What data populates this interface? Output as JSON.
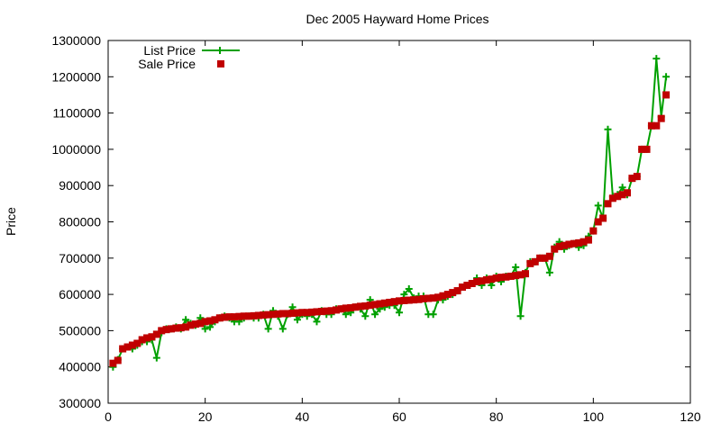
{
  "chart_data": {
    "type": "line",
    "title": "Dec 2005 Hayward Home Prices",
    "xlabel": "",
    "ylabel": "Price",
    "xlim": [
      0,
      120
    ],
    "ylim": [
      300000,
      1300000
    ],
    "x_ticks": [
      0,
      20,
      40,
      60,
      80,
      100,
      120
    ],
    "y_ticks": [
      300000,
      400000,
      500000,
      600000,
      700000,
      800000,
      900000,
      1000000,
      1100000,
      1200000,
      1300000
    ],
    "grid": false,
    "legend_position": "top-left",
    "series": [
      {
        "name": "List Price",
        "style": "line+cross",
        "color": "#00a000",
        "x": [
          1,
          2,
          3,
          4,
          5,
          6,
          7,
          8,
          9,
          10,
          11,
          12,
          13,
          14,
          15,
          16,
          17,
          18,
          19,
          20,
          21,
          22,
          23,
          24,
          25,
          26,
          27,
          28,
          29,
          30,
          31,
          32,
          33,
          34,
          35,
          36,
          37,
          38,
          39,
          40,
          41,
          42,
          43,
          44,
          45,
          46,
          47,
          48,
          49,
          50,
          51,
          52,
          53,
          54,
          55,
          56,
          57,
          58,
          59,
          60,
          61,
          62,
          63,
          64,
          65,
          66,
          67,
          68,
          69,
          70,
          71,
          72,
          73,
          74,
          75,
          76,
          77,
          78,
          79,
          80,
          81,
          82,
          83,
          84,
          85,
          86,
          87,
          88,
          89,
          90,
          91,
          92,
          93,
          94,
          95,
          96,
          97,
          98,
          99,
          100,
          101,
          102,
          103,
          104,
          105,
          106,
          107,
          108,
          109,
          110,
          111,
          112,
          113,
          114,
          115
        ],
        "y": [
          400000,
          420000,
          450000,
          455000,
          450000,
          460000,
          470000,
          470000,
          475000,
          425000,
          495000,
          505000,
          505000,
          510000,
          505000,
          530000,
          520000,
          515000,
          535000,
          505000,
          510000,
          525000,
          535000,
          540000,
          535000,
          525000,
          525000,
          535000,
          540000,
          535000,
          535000,
          545000,
          505000,
          555000,
          540000,
          505000,
          545000,
          565000,
          530000,
          545000,
          540000,
          545000,
          525000,
          555000,
          545000,
          545000,
          560000,
          560000,
          545000,
          550000,
          565000,
          560000,
          540000,
          585000,
          545000,
          560000,
          565000,
          570000,
          570000,
          550000,
          600000,
          615000,
          590000,
          595000,
          595000,
          545000,
          545000,
          585000,
          585000,
          595000,
          600000,
          610000,
          620000,
          625000,
          630000,
          645000,
          625000,
          645000,
          625000,
          650000,
          635000,
          650000,
          650000,
          675000,
          540000,
          660000,
          690000,
          690000,
          700000,
          700000,
          660000,
          730000,
          745000,
          725000,
          735000,
          740000,
          730000,
          735000,
          760000,
          775000,
          845000,
          810000,
          1055000,
          870000,
          875000,
          895000,
          875000,
          920000,
          925000,
          1000000,
          1000000,
          1065000,
          1250000,
          1090000,
          1200000
        ]
      },
      {
        "name": "Sale Price",
        "style": "square",
        "color": "#c00000",
        "x": [
          1,
          2,
          3,
          4,
          5,
          6,
          7,
          8,
          9,
          10,
          11,
          12,
          13,
          14,
          15,
          16,
          17,
          18,
          19,
          20,
          21,
          22,
          23,
          24,
          25,
          26,
          27,
          28,
          29,
          30,
          31,
          32,
          33,
          34,
          35,
          36,
          37,
          38,
          39,
          40,
          41,
          42,
          43,
          44,
          45,
          46,
          47,
          48,
          49,
          50,
          51,
          52,
          53,
          54,
          55,
          56,
          57,
          58,
          59,
          60,
          61,
          62,
          63,
          64,
          65,
          66,
          67,
          68,
          69,
          70,
          71,
          72,
          73,
          74,
          75,
          76,
          77,
          78,
          79,
          80,
          81,
          82,
          83,
          84,
          85,
          86,
          87,
          88,
          89,
          90,
          91,
          92,
          93,
          94,
          95,
          96,
          97,
          98,
          99,
          100,
          101,
          102,
          103,
          104,
          105,
          106,
          107,
          108,
          109,
          110,
          111,
          112,
          113,
          114,
          115
        ],
        "y": [
          410000,
          418000,
          450000,
          455000,
          460000,
          465000,
          475000,
          480000,
          483000,
          490000,
          500000,
          503000,
          505000,
          507000,
          508000,
          510000,
          515000,
          518000,
          520000,
          525000,
          527000,
          530000,
          535000,
          537000,
          538000,
          538000,
          539000,
          540000,
          540000,
          541000,
          542000,
          543000,
          544000,
          545000,
          546000,
          547000,
          547000,
          548000,
          549000,
          550000,
          550000,
          551000,
          552000,
          553000,
          554000,
          555000,
          557000,
          560000,
          562000,
          563000,
          565000,
          567000,
          568000,
          570000,
          572000,
          574000,
          576000,
          578000,
          580000,
          582000,
          583000,
          584000,
          585000,
          586000,
          588000,
          589000,
          590000,
          592000,
          596000,
          600000,
          605000,
          610000,
          620000,
          625000,
          630000,
          635000,
          637000,
          640000,
          642000,
          645000,
          647000,
          648000,
          650000,
          652000,
          654000,
          657000,
          685000,
          690000,
          700000,
          700000,
          705000,
          725000,
          732000,
          735000,
          738000,
          740000,
          742000,
          745000,
          750000,
          775000,
          800000,
          810000,
          850000,
          865000,
          870000,
          875000,
          880000,
          920000,
          925000,
          1000000,
          1000000,
          1065000,
          1065000,
          1085000,
          1150000
        ]
      }
    ]
  }
}
